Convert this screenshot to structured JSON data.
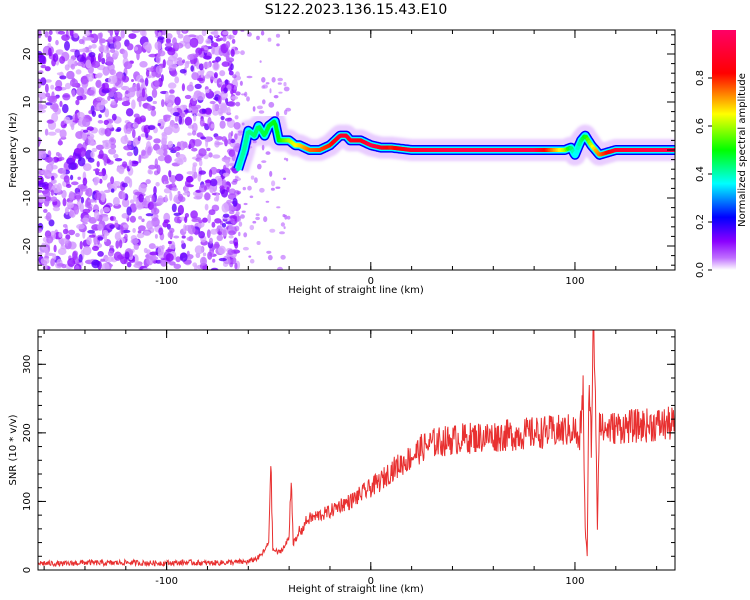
{
  "title": "S122.2023.136.15.43.E10",
  "chart_data": [
    {
      "type": "heatmap",
      "xlabel": "Height of straight line (km)",
      "ylabel": "Frequency (Hz)",
      "xlim": [
        -163,
        149
      ],
      "ylim": [
        -25,
        25
      ],
      "xticks": [
        -100,
        0,
        100
      ],
      "yticks": [
        -20,
        -10,
        0,
        10,
        20
      ],
      "colorbar": {
        "label": "Normalized spectral amplitude",
        "range": [
          0,
          1
        ],
        "ticks": [
          "0.0",
          "0.2",
          "0.4",
          "0.6",
          "0.8"
        ],
        "colors": [
          "#ffffff",
          "#8a00ff",
          "#0000ff",
          "#00ffff",
          "#00ff00",
          "#ffff00",
          "#ff0000",
          "#ff0066"
        ]
      },
      "noise_region_x": [
        -163,
        -65
      ],
      "ridge_freq": {
        "x": [
          -65,
          -62,
          -60,
          -57,
          -55,
          -52,
          -50,
          -47,
          -45,
          -42,
          -40,
          -37,
          -35,
          -30,
          -25,
          -20,
          -15,
          -12,
          -10,
          -5,
          0,
          5,
          10,
          20,
          40,
          60,
          80,
          95,
          98,
          100,
          103,
          105,
          108,
          112,
          120,
          140,
          149
        ],
        "y": [
          -4,
          0,
          4,
          3,
          5,
          3,
          5,
          6,
          2,
          2,
          2,
          1,
          1,
          0,
          0,
          1,
          3,
          3,
          2,
          2,
          1,
          0.5,
          0.5,
          0,
          0,
          0,
          0,
          0,
          0.5,
          -1,
          2,
          3,
          1,
          -1,
          0,
          0,
          0
        ]
      },
      "ridge_amplitude": {
        "x": [
          -65,
          -55,
          -45,
          -40,
          -30,
          -20,
          -15,
          -5,
          0,
          10,
          20,
          40,
          60,
          80,
          95,
          100,
          105,
          110,
          120,
          140,
          149
        ],
        "y": [
          0.4,
          0.45,
          0.5,
          0.6,
          0.75,
          0.8,
          0.9,
          0.85,
          0.95,
          0.8,
          0.9,
          0.95,
          0.95,
          0.95,
          0.6,
          0.35,
          0.5,
          0.7,
          0.9,
          0.95,
          0.95
        ]
      }
    },
    {
      "type": "line",
      "xlabel": "Height of straight line (km)",
      "ylabel": "SNR (10 * v/v)",
      "xlim": [
        -163,
        149
      ],
      "ylim": [
        0,
        350
      ],
      "xticks": [
        -100,
        0,
        100
      ],
      "yticks": [
        0,
        100,
        200,
        300
      ],
      "color": "#e83030",
      "x": [
        -163,
        -150,
        -140,
        -130,
        -120,
        -110,
        -100,
        -90,
        -80,
        -70,
        -60,
        -55,
        -52,
        -50,
        -49,
        -48,
        -45,
        -42,
        -40,
        -39,
        -38,
        -36,
        -35,
        -34,
        -32,
        -30,
        -25,
        -20,
        -15,
        -10,
        -5,
        0,
        5,
        10,
        15,
        20,
        25,
        30,
        40,
        50,
        60,
        70,
        80,
        90,
        95,
        100,
        102,
        104,
        105,
        106,
        107,
        108,
        109,
        110,
        111,
        112,
        113,
        115,
        120,
        130,
        140,
        149
      ],
      "y": [
        10,
        9,
        11,
        10,
        11,
        10,
        10,
        11,
        10,
        11,
        12,
        18,
        28,
        40,
        160,
        30,
        25,
        35,
        48,
        140,
        40,
        45,
        60,
        55,
        70,
        75,
        80,
        85,
        95,
        100,
        110,
        120,
        130,
        145,
        155,
        165,
        178,
        185,
        190,
        193,
        195,
        197,
        200,
        202,
        203,
        205,
        180,
        260,
        60,
        20,
        290,
        180,
        350,
        270,
        60,
        235,
        205,
        205,
        208,
        210,
        212,
        213
      ]
    }
  ]
}
